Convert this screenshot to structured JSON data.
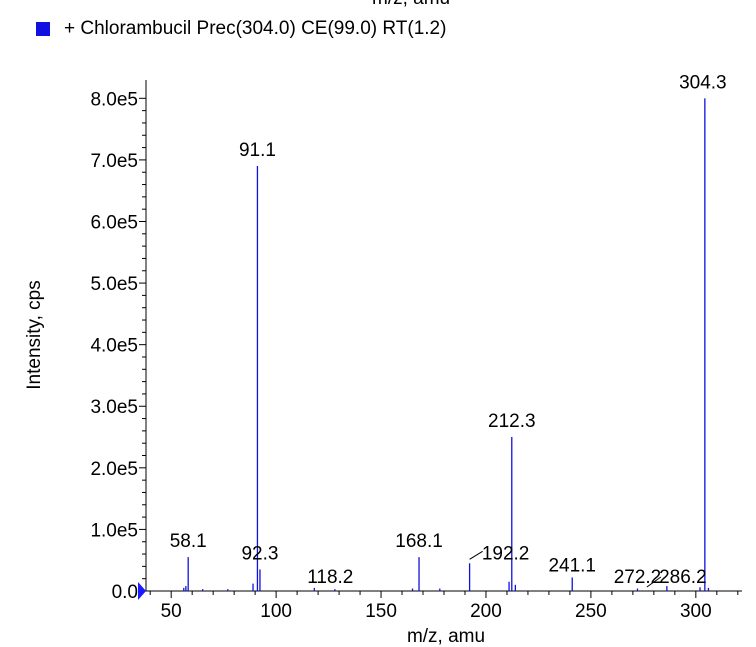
{
  "header": {
    "clipped_xlabel": "m/z, amu"
  },
  "legend": {
    "label": "+ Chlorambucil Prec(304.0) CE(99.0) RT(1.2)",
    "swatch_color": "#1010e0"
  },
  "colors": {
    "series": "#1010e0",
    "marker": "#1a1aff",
    "axis": "#000000"
  },
  "chart_data": {
    "type": "bar",
    "title": "",
    "xlabel": "m/z, amu",
    "ylabel": "Intensity, cps",
    "xlim": [
      38,
      322
    ],
    "ylim": [
      0,
      820000
    ],
    "xticks": [
      50,
      100,
      150,
      200,
      250,
      300
    ],
    "xtick_labels": [
      "50",
      "100",
      "150",
      "200",
      "250",
      "300"
    ],
    "yticks": [
      0,
      100000,
      200000,
      300000,
      400000,
      500000,
      600000,
      700000,
      800000
    ],
    "ytick_labels": [
      "0.0",
      "1.0e5",
      "2.0e5",
      "3.0e5",
      "4.0e5",
      "5.0e5",
      "6.0e5",
      "7.0e5",
      "8.0e5"
    ],
    "grid": false,
    "legend_position": "top-left",
    "series": [
      {
        "name": "+ Chlorambucil Prec(304.0) CE(99.0) RT(1.2)",
        "x": [
          56.0,
          57.0,
          58.1,
          65.0,
          77.0,
          89.0,
          91.1,
          92.3,
          118.2,
          128.0,
          165.0,
          168.1,
          178.0,
          192.2,
          211.0,
          212.3,
          214.0,
          241.1,
          272.2,
          286.2,
          302.0,
          304.3,
          306.0
        ],
        "y": [
          5000,
          8000,
          55000,
          3000,
          3000,
          12000,
          690000,
          35000,
          5000,
          3000,
          4000,
          55000,
          4000,
          45000,
          15000,
          250000,
          10000,
          22000,
          4000,
          8000,
          6000,
          800000,
          5000
        ]
      }
    ],
    "peak_labels": [
      {
        "x": 58.1,
        "y": 55000,
        "text": "58.1"
      },
      {
        "x": 91.1,
        "y": 690000,
        "text": "91.1"
      },
      {
        "x": 92.3,
        "y": 35000,
        "text": "92.3"
      },
      {
        "x": 118.2,
        "y": 5000,
        "text": "118.2"
      },
      {
        "x": 168.1,
        "y": 55000,
        "text": "168.1"
      },
      {
        "x": 192.2,
        "y": 45000,
        "text": "192.2"
      },
      {
        "x": 212.3,
        "y": 250000,
        "text": "212.3"
      },
      {
        "x": 241.1,
        "y": 22000,
        "text": "241.1"
      },
      {
        "x": 272.2,
        "y": 4000,
        "text": "272.2"
      },
      {
        "x": 286.2,
        "y": 8000,
        "text": "286.2"
      },
      {
        "x": 304.3,
        "y": 800000,
        "text": "304.3"
      }
    ]
  }
}
